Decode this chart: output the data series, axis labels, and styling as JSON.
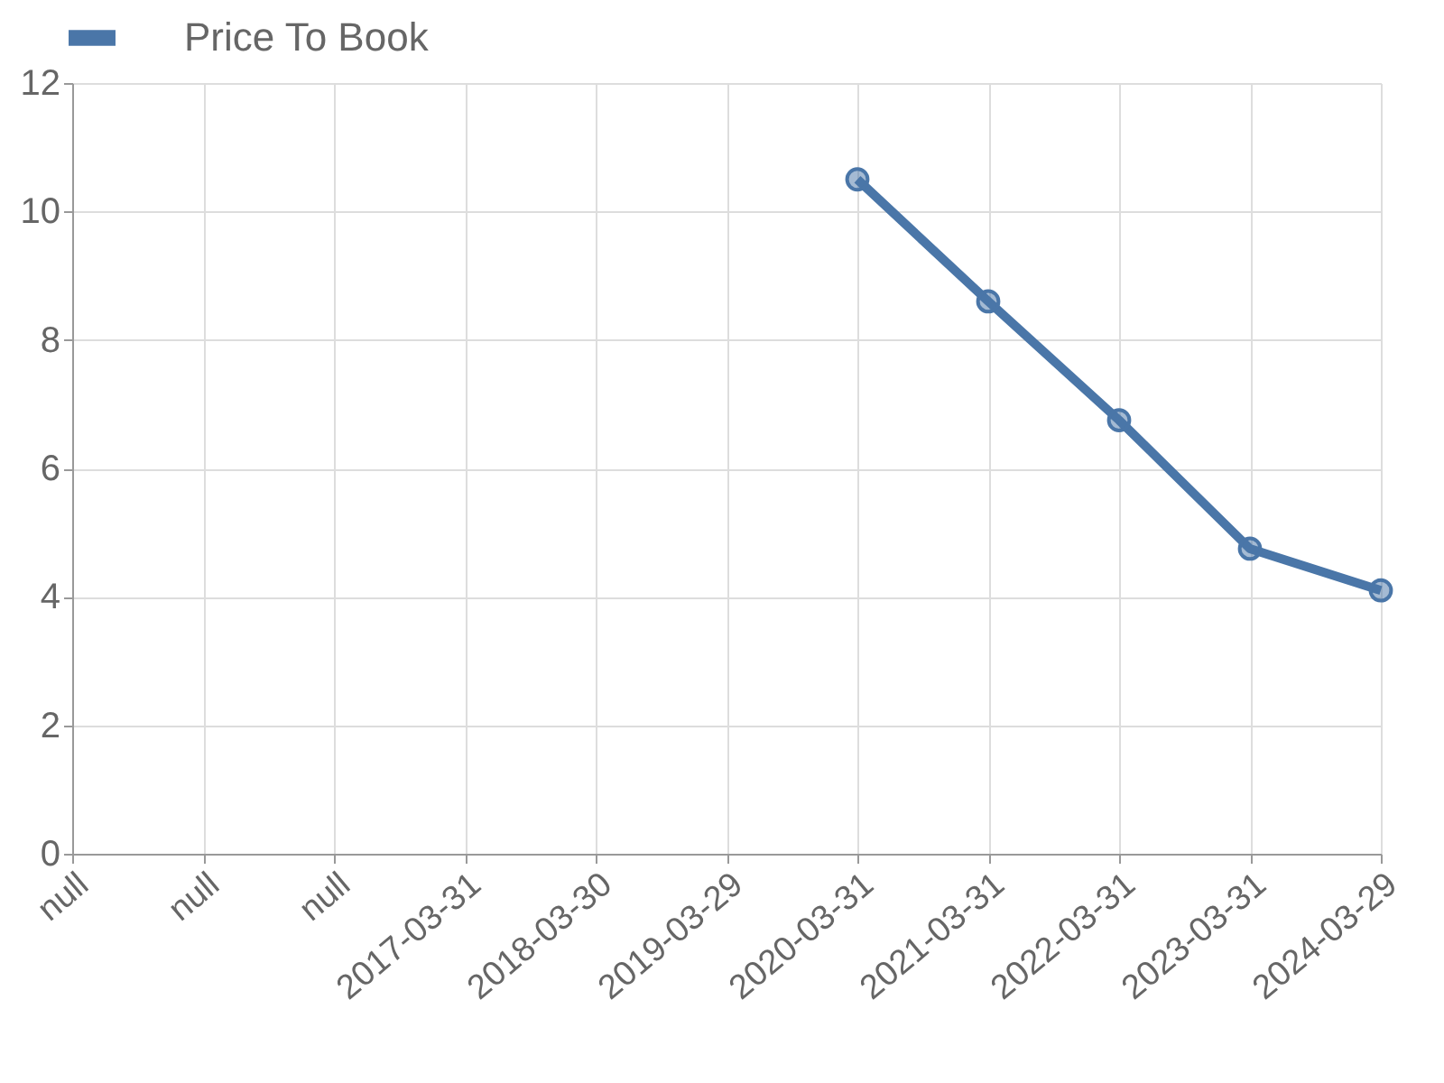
{
  "chart_data": {
    "type": "line",
    "categories": [
      "null",
      "null",
      "null",
      "2017-03-31",
      "2018-03-30",
      "2019-03-29",
      "2020-03-31",
      "2021-03-31",
      "2022-03-31",
      "2023-03-31",
      "2024-03-29"
    ],
    "series": [
      {
        "name": "Price To Book",
        "color": "#4a76a8",
        "values": [
          null,
          null,
          null,
          null,
          null,
          null,
          10.5,
          8.6,
          6.75,
          4.75,
          4.1
        ]
      }
    ],
    "ylim": [
      0,
      12
    ],
    "yticks": [
      0,
      2,
      4,
      6,
      8,
      10,
      12
    ],
    "grid": true,
    "legend": "top",
    "marker": "circle",
    "line_style": "solid"
  }
}
